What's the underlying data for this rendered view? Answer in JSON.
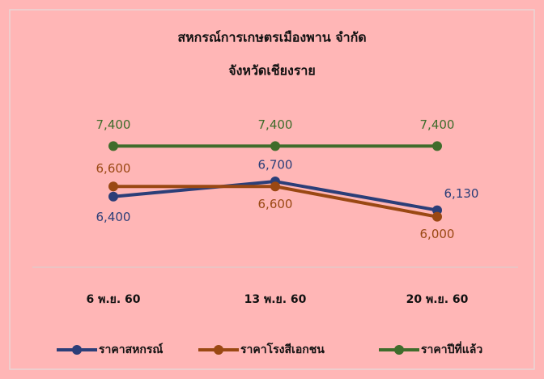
{
  "chart_data": {
    "type": "line",
    "title": "สหกรณ์การเกษตรเมืองพาน จำกัด",
    "subtitle": "จังหวัดเชียงราย",
    "categories": [
      "6 พ.ย. 60",
      "13 พ.ย. 60",
      "20 พ.ย. 60"
    ],
    "ylim": [
      5000,
      8000
    ],
    "series": [
      {
        "name": "ราคาสหกรณ์",
        "color": "#2b3e78",
        "values": [
          6400,
          6700,
          6130
        ],
        "value_labels": [
          "6,400",
          "6,700",
          "6,130"
        ]
      },
      {
        "name": "ราคาโรงสีเอกชน",
        "color": "#9a4813",
        "values": [
          6600,
          6600,
          6000
        ],
        "value_labels": [
          "6,600",
          "6,600",
          "6,000"
        ]
      },
      {
        "name": "ราคาปีที่แล้ว",
        "color": "#3f6c2b",
        "values": [
          7400,
          7400,
          7400
        ],
        "value_labels": [
          "7,400",
          "7,400",
          "7,400"
        ]
      }
    ]
  }
}
